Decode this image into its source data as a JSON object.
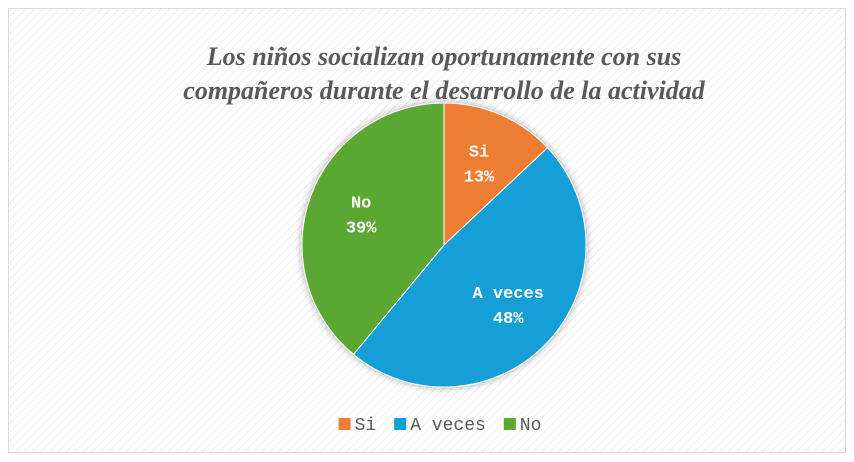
{
  "chart_data": {
    "type": "pie",
    "title": "Los niños socializan oportunamente con sus compañeros durante el desarrollo de la actividad",
    "categories": [
      "Si",
      "A veces",
      "No"
    ],
    "values": [
      13,
      48,
      39
    ],
    "value_labels": [
      "13%",
      "48%",
      "39%"
    ],
    "colors": [
      "#ED7D31",
      "#129ED6",
      "#5AA832"
    ],
    "legend": "bottom"
  }
}
